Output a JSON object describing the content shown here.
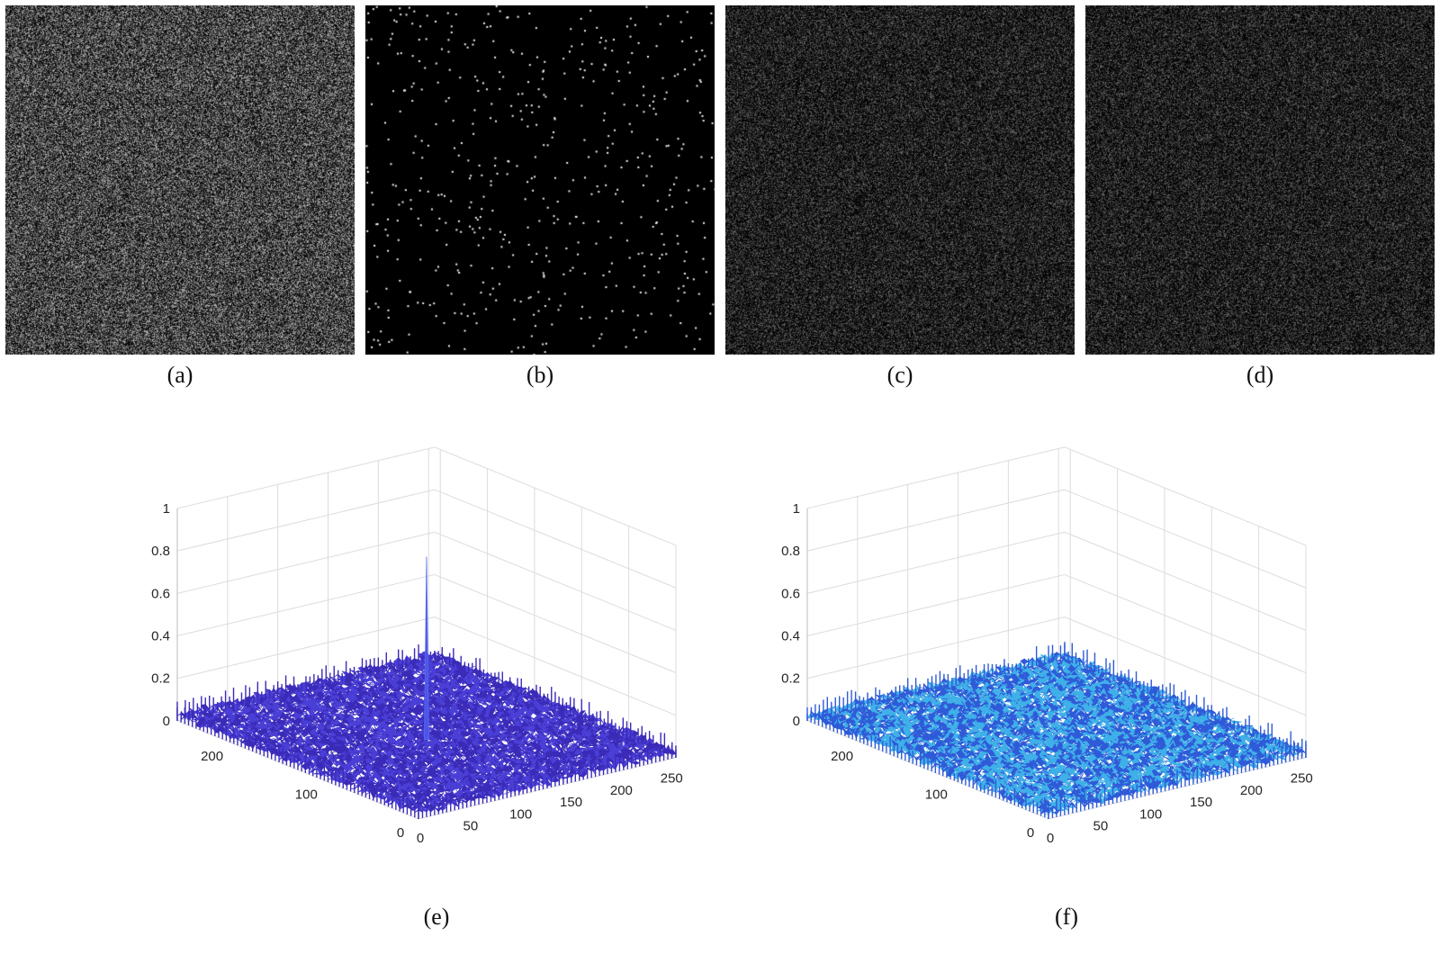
{
  "figure": {
    "panels": [
      {
        "id": "a",
        "caption": "(a)",
        "kind": "dense-noise",
        "tone": "gray"
      },
      {
        "id": "b",
        "caption": "(b)",
        "kind": "sparse-dots",
        "tone": "white"
      },
      {
        "id": "c",
        "caption": "(c)",
        "kind": "dark-noise",
        "tone": "dim"
      },
      {
        "id": "d",
        "caption": "(d)",
        "kind": "dark-noise",
        "tone": "dim"
      }
    ]
  },
  "chart_data": [
    {
      "type": "surface",
      "caption": "(e)",
      "zlim": [
        0,
        1
      ],
      "xlim": [
        0,
        256
      ],
      "ylim": [
        0,
        256
      ],
      "zticks": [
        "0",
        "0.2",
        "0.4",
        "0.6",
        "0.8",
        "1"
      ],
      "xticks": [
        "0",
        "50",
        "100",
        "150",
        "200",
        "250"
      ],
      "yticks": [
        "0",
        "100",
        "200"
      ],
      "baseline_level": 0.03,
      "peak": {
        "x": 128,
        "y": 128,
        "z": 0.86
      },
      "colormap": [
        "#3b2bb8",
        "#4a3fd6"
      ],
      "grid": true
    },
    {
      "type": "surface",
      "caption": "(f)",
      "zlim": [
        0,
        1
      ],
      "xlim": [
        0,
        256
      ],
      "ylim": [
        0,
        256
      ],
      "zticks": [
        "0",
        "0.2",
        "0.4",
        "0.6",
        "0.8",
        "1"
      ],
      "xticks": [
        "0",
        "50",
        "100",
        "150",
        "200",
        "250"
      ],
      "yticks": [
        "0",
        "100",
        "200"
      ],
      "baseline_level": 0.03,
      "peak": null,
      "colormap": [
        "#2f5bd8",
        "#3fb0e8"
      ],
      "grid": true
    }
  ]
}
